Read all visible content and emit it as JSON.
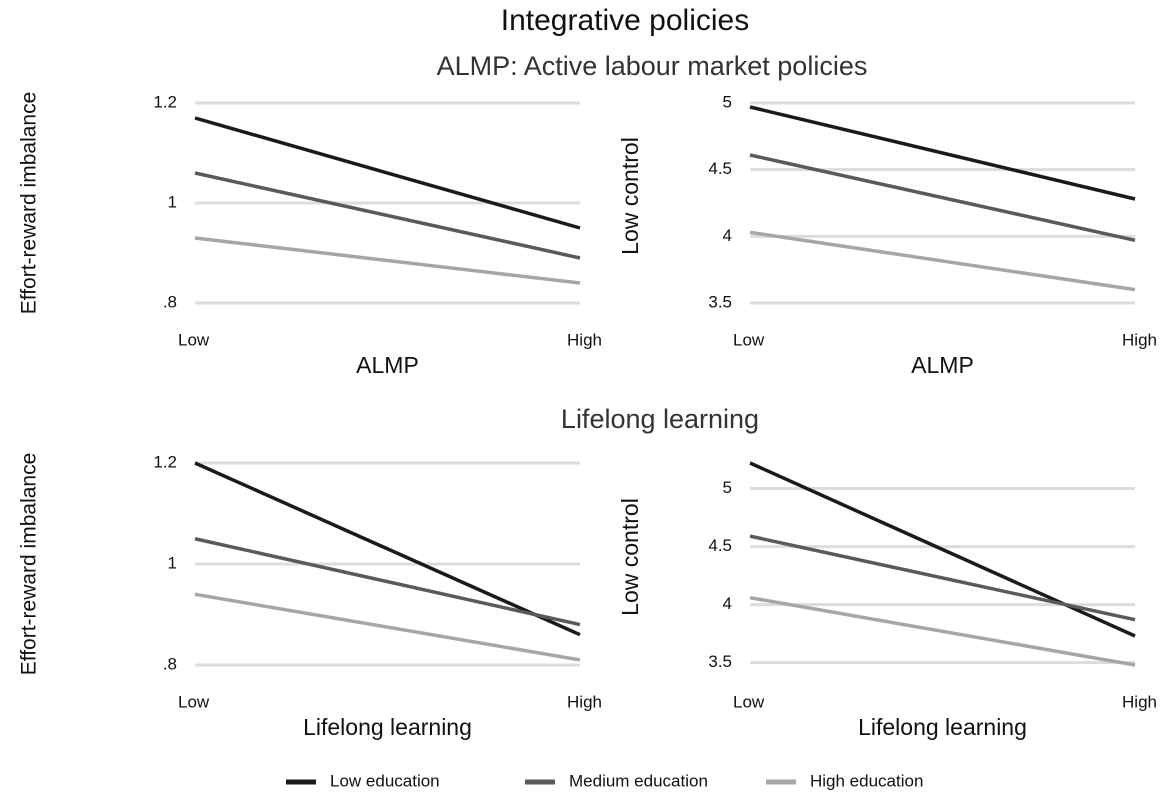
{
  "title": "Integrative policies",
  "sections": [
    "ALMP: Active labour market policies",
    "Lifelong learning"
  ],
  "chart_data": [
    {
      "type": "line",
      "categories": [
        "Low",
        "High"
      ],
      "x_label": "ALMP",
      "y_label": "Effort-reward imbalance",
      "ylim": [
        0.8,
        1.2
      ],
      "yticks": [
        {
          "value": 0.8,
          "label": ".8"
        },
        1,
        1.2
      ],
      "grid": true,
      "series": [
        {
          "name": "Low education",
          "color": "#1a1a1a",
          "values": [
            1.17,
            0.95
          ]
        },
        {
          "name": "Medium education",
          "color": "#5a5a5a",
          "values": [
            1.06,
            0.89
          ]
        },
        {
          "name": "High education",
          "color": "#a6a6a6",
          "values": [
            0.93,
            0.84
          ]
        }
      ]
    },
    {
      "type": "line",
      "categories": [
        "Low",
        "High"
      ],
      "x_label": "ALMP",
      "y_label": "Low control",
      "ylim": [
        3.5,
        5
      ],
      "yticks": [
        3.5,
        4,
        4.5,
        5
      ],
      "grid": true,
      "series": [
        {
          "color": "#1a1a1a",
          "values": [
            4.97,
            4.28
          ]
        },
        {
          "color": "#5a5a5a",
          "values": [
            4.61,
            3.97
          ]
        },
        {
          "color": "#a6a6a6",
          "values": [
            4.03,
            3.6
          ]
        }
      ]
    },
    {
      "type": "line",
      "categories": [
        "Low",
        "High"
      ],
      "x_label": "Lifelong learning",
      "y_label": "Effort-reward imbalance",
      "ylim": [
        0.8,
        1.2
      ],
      "yticks": [
        {
          "value": 0.8,
          "label": ".8"
        },
        1,
        1.2
      ],
      "grid": true,
      "series": [
        {
          "color": "#1a1a1a",
          "values": [
            1.2,
            0.86
          ]
        },
        {
          "color": "#5a5a5a",
          "values": [
            1.05,
            0.88
          ]
        },
        {
          "color": "#a6a6a6",
          "values": [
            0.94,
            0.81
          ]
        }
      ]
    },
    {
      "type": "line",
      "categories": [
        "Low",
        "High"
      ],
      "x_label": "Lifelong learning",
      "y_label": "Low control",
      "ylim": [
        3.48,
        5.22
      ],
      "yticks": [
        3.5,
        4,
        4.5,
        5
      ],
      "grid": true,
      "series": [
        {
          "color": "#1a1a1a",
          "values": [
            5.22,
            3.73
          ]
        },
        {
          "color": "#5a5a5a",
          "values": [
            4.59,
            3.87
          ]
        },
        {
          "color": "#a6a6a6",
          "values": [
            4.06,
            3.48
          ]
        }
      ]
    }
  ]
}
